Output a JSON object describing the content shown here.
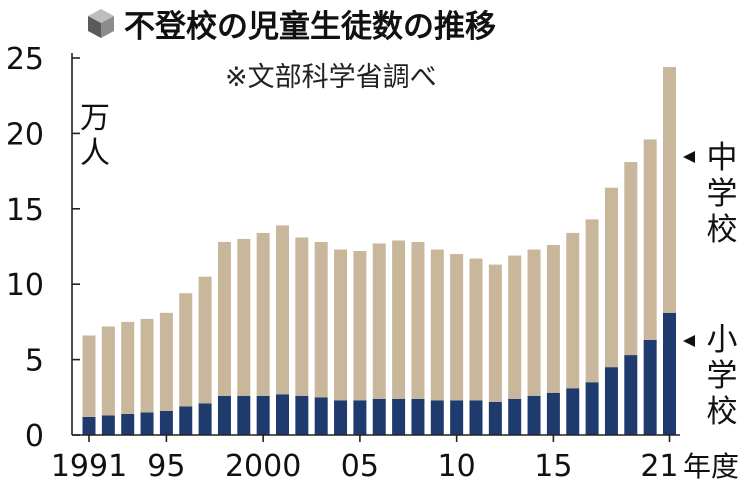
{
  "chart_data": {
    "type": "bar",
    "stacked": true,
    "title": "不登校の児童生徒数の推移",
    "subtitle": "※文部科学省調べ",
    "ylabel": "万人",
    "xlabel": "年度",
    "ylim": [
      0,
      25
    ],
    "yticks": [
      "0",
      "5",
      "10",
      "15",
      "20",
      "25"
    ],
    "xtick_labels": [
      {
        "index": 0,
        "label": "1991"
      },
      {
        "index": 4,
        "label": "95"
      },
      {
        "index": 9,
        "label": "2000"
      },
      {
        "index": 14,
        "label": "05"
      },
      {
        "index": 19,
        "label": "10"
      },
      {
        "index": 24,
        "label": "15"
      },
      {
        "index": 30,
        "label": "21"
      }
    ],
    "categories": [
      "1991",
      "1992",
      "1993",
      "1994",
      "1995",
      "1996",
      "1997",
      "1998",
      "1999",
      "2000",
      "2001",
      "2002",
      "2003",
      "2004",
      "2005",
      "2006",
      "2007",
      "2008",
      "2009",
      "2010",
      "2011",
      "2012",
      "2013",
      "2014",
      "2015",
      "2016",
      "2017",
      "2018",
      "2019",
      "2020",
      "2021"
    ],
    "series": [
      {
        "name": "小学校",
        "color": "#1f3b6e",
        "values": [
          1.2,
          1.3,
          1.4,
          1.5,
          1.6,
          1.9,
          2.1,
          2.6,
          2.6,
          2.6,
          2.7,
          2.6,
          2.5,
          2.3,
          2.3,
          2.4,
          2.4,
          2.4,
          2.3,
          2.3,
          2.3,
          2.2,
          2.4,
          2.6,
          2.8,
          3.1,
          3.5,
          4.5,
          5.3,
          6.3,
          8.1
        ]
      },
      {
        "name": "中学校",
        "color": "#c8b79a",
        "values": [
          5.4,
          5.9,
          6.1,
          6.2,
          6.5,
          7.5,
          8.4,
          10.2,
          10.4,
          10.8,
          11.2,
          10.5,
          10.3,
          10.0,
          9.9,
          10.3,
          10.5,
          10.4,
          10.0,
          9.7,
          9.4,
          9.1,
          9.5,
          9.7,
          9.8,
          10.3,
          10.8,
          11.9,
          12.8,
          13.3,
          16.3
        ]
      }
    ],
    "labels": {
      "junior_high": "中学校",
      "elementary": "小学校"
    }
  }
}
